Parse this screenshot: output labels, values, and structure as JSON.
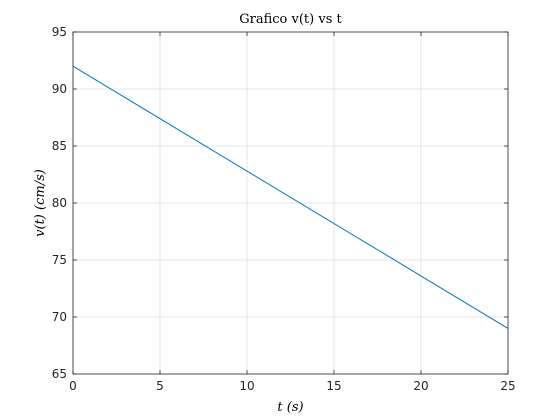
{
  "chart_data": {
    "type": "line",
    "title": "Grafico v(t) vs t",
    "xlabel": "t (s)",
    "ylabel": "v(t) (cm/s)",
    "xlim": [
      0,
      25
    ],
    "ylim": [
      65,
      95
    ],
    "xticks": [
      0,
      5,
      10,
      15,
      20,
      25
    ],
    "yticks": [
      65,
      70,
      75,
      80,
      85,
      90,
      95
    ],
    "grid": true,
    "series": [
      {
        "color": "#0072BD",
        "x": [
          0,
          25
        ],
        "y": [
          92,
          69
        ]
      }
    ]
  }
}
